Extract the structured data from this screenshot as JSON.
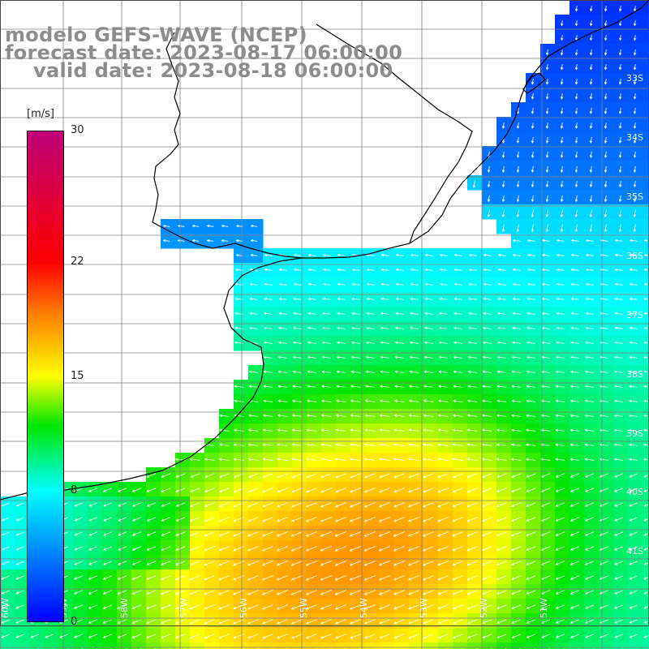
{
  "title": {
    "line1": "modelo GEFS-WAVE (NCEP)",
    "line2": "forecast date: 2023-08-17 06:00:00",
    "line3": "valid date: 2023-08-18 06:00:00"
  },
  "colorbar": {
    "unit": "[m/s]",
    "min": 0,
    "max": 30,
    "tick_labels": [
      "30",
      "22",
      "15",
      "8",
      "0"
    ],
    "tick_values": [
      30,
      22,
      15,
      8,
      0
    ]
  },
  "lat_labels": [
    "33S",
    "34S",
    "35S",
    "36S",
    "37S",
    "38S",
    "39S",
    "40S",
    "41S"
  ],
  "lon_labels": [
    "60W",
    "59W",
    "58W",
    "57W",
    "56W",
    "55W",
    "54W",
    "53W",
    "52W",
    "51W"
  ],
  "colors": {
    "coast": "#000000",
    "grid": "#808080",
    "arrows": "#ffffff",
    "title": "#8c8c8c"
  }
}
